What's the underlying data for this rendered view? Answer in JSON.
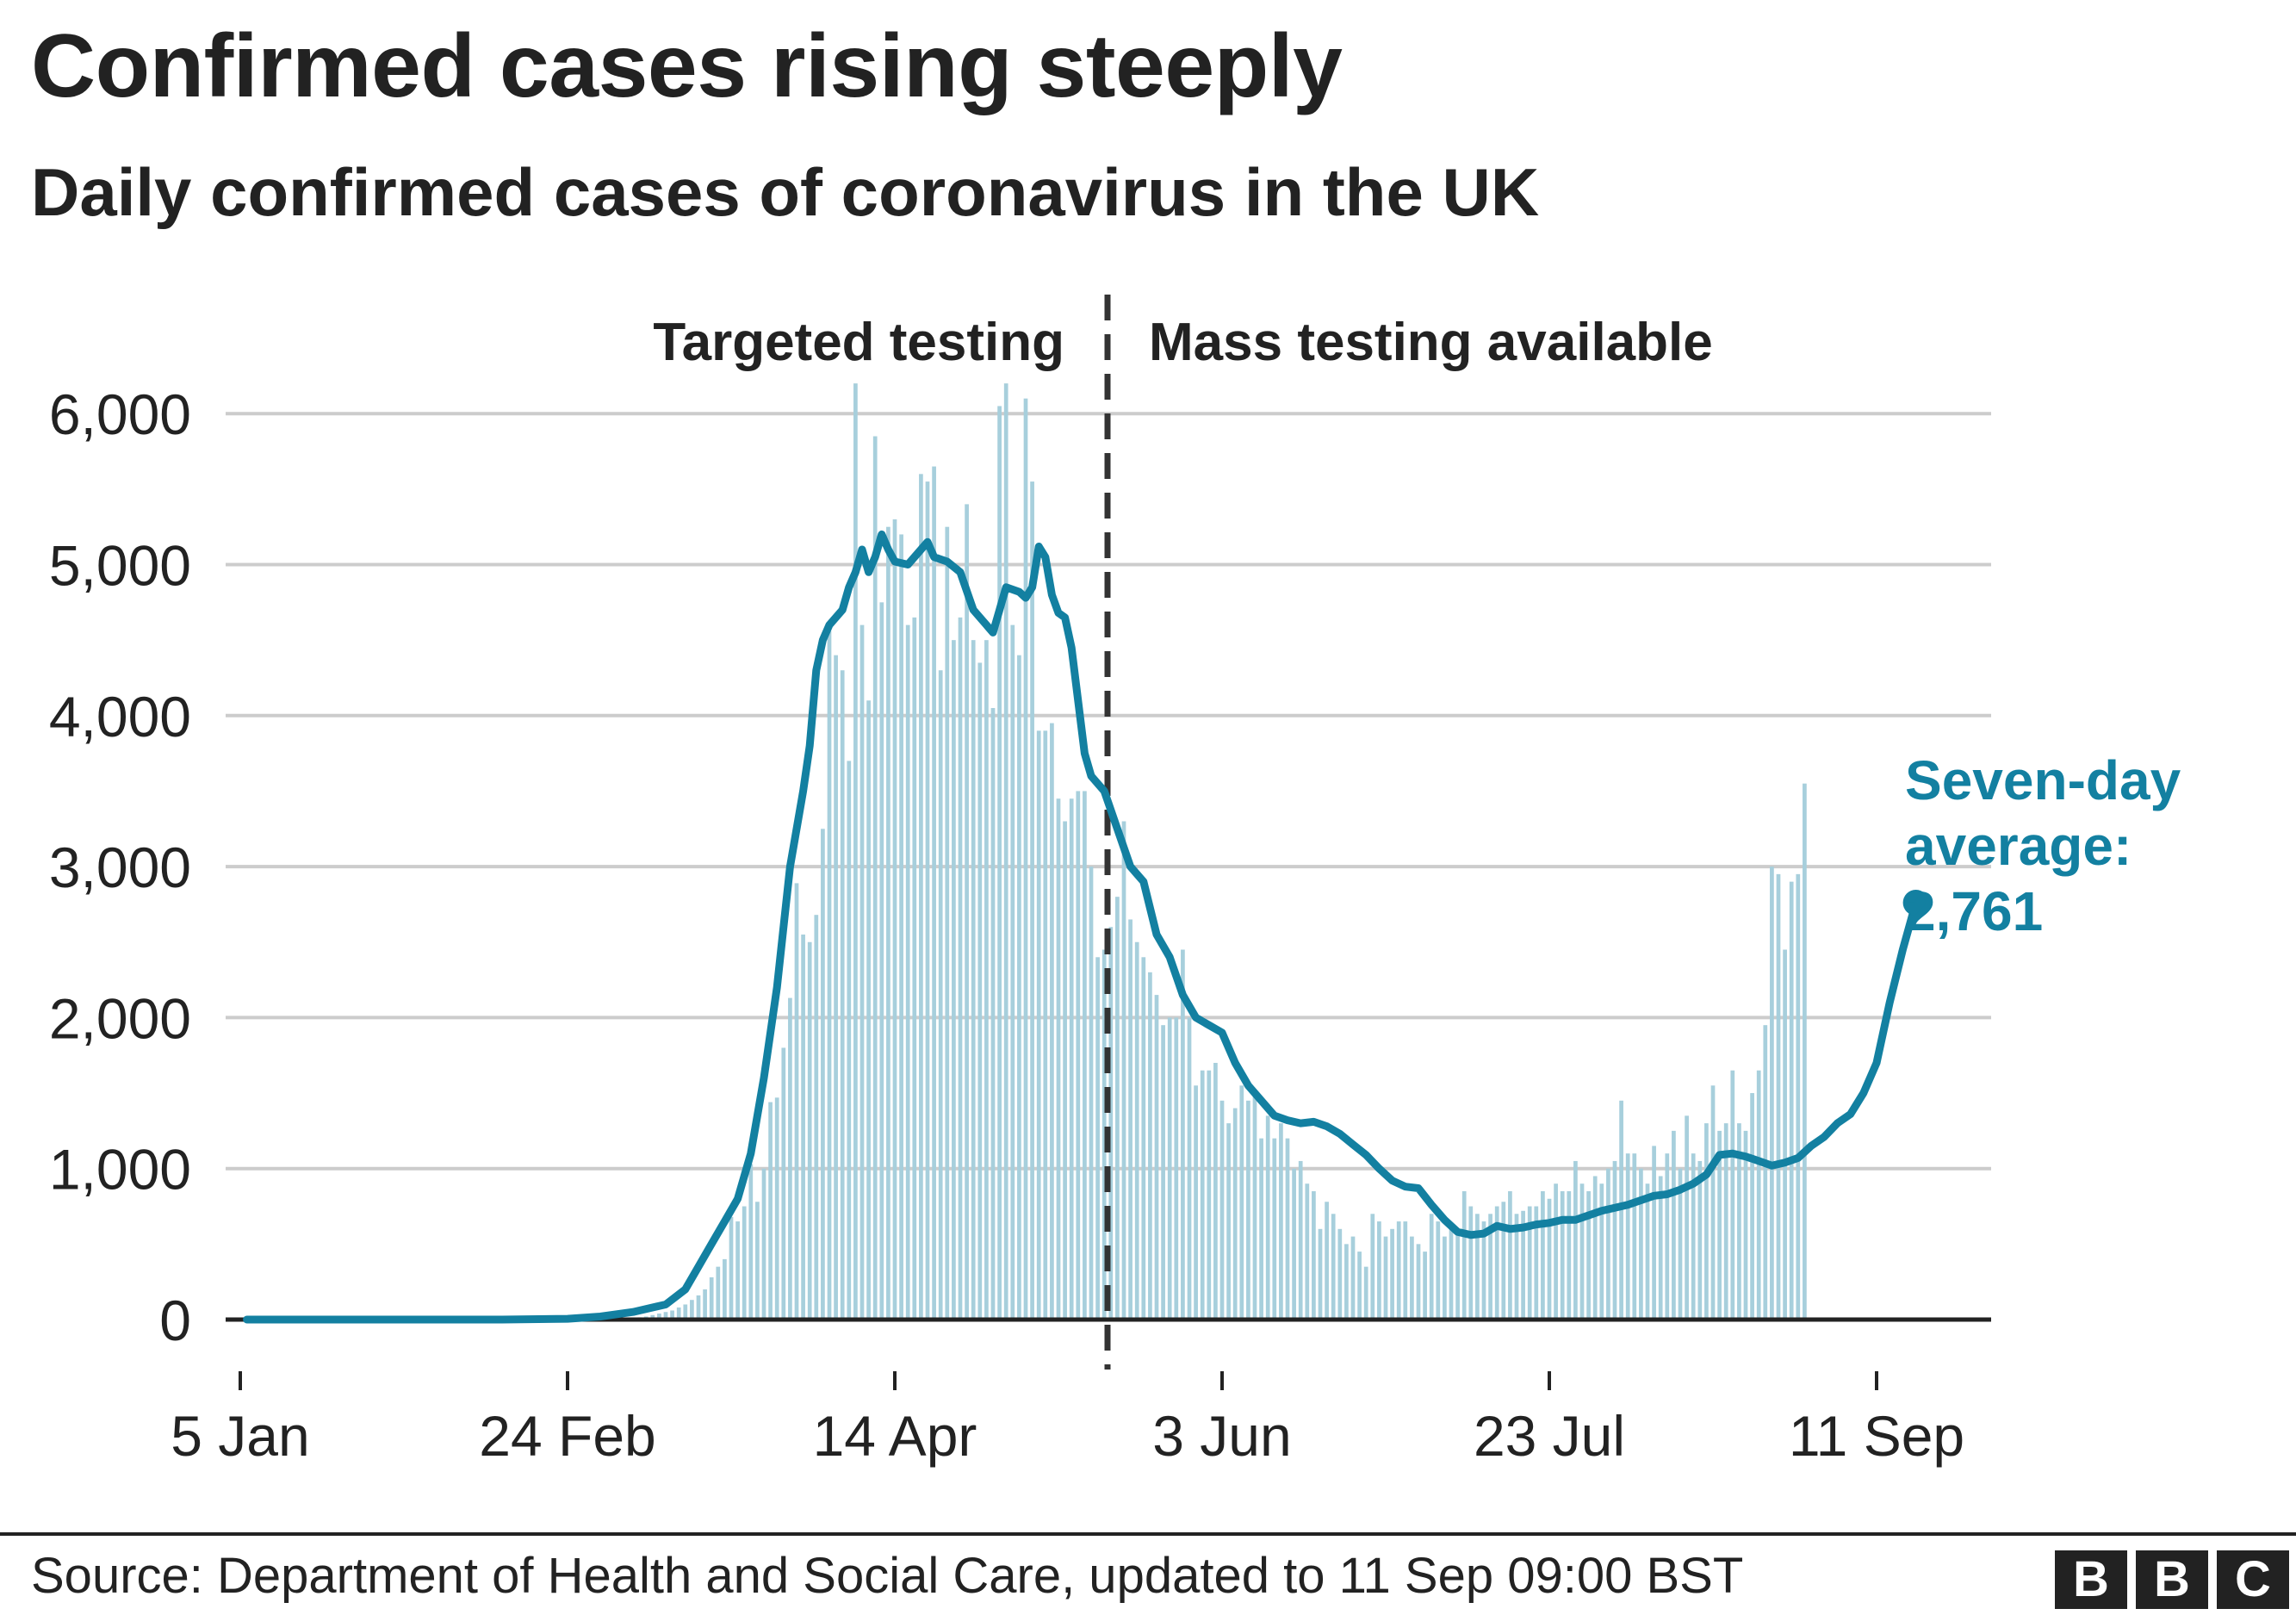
{
  "title": "Confirmed cases rising steeply",
  "subtitle": "Daily confirmed cases of coronavirus in the UK",
  "source": "Source: Department of Health and Social Care, updated to 11 Sep 09:00 BST",
  "logo": [
    "B",
    "B",
    "C"
  ],
  "colors": {
    "bar": "#a7cfdc",
    "line": "#1380a1",
    "text": "#222222",
    "grid": "#cccccc"
  },
  "chart_data": {
    "type": "bar",
    "x_start": "5 Jan",
    "x_end": "11 Sep",
    "ylim": [
      0,
      6000
    ],
    "y_ticks": [
      0,
      1000,
      2000,
      3000,
      4000,
      5000,
      6000
    ],
    "y_tick_labels": [
      "0",
      "1,000",
      "2,000",
      "3,000",
      "4,000",
      "5,000",
      "6,000"
    ],
    "x_ticks": [
      {
        "label": "5 Jan",
        "day": 0
      },
      {
        "label": "24 Feb",
        "day": 50
      },
      {
        "label": "14 Apr",
        "day": 100
      },
      {
        "label": "3 Jun",
        "day": 150
      },
      {
        "label": "23 Jul",
        "day": 200
      },
      {
        "label": "11 Sep",
        "day": 250
      }
    ],
    "divider_day": 132.5,
    "region_labels": {
      "left": "Targeted testing",
      "right": "Mass testing available"
    },
    "bar_series": {
      "name": "Daily confirmed cases",
      "start_day": 60,
      "values": [
        10,
        15,
        20,
        30,
        40,
        50,
        60,
        80,
        100,
        130,
        160,
        200,
        280,
        350,
        400,
        680,
        650,
        750,
        1030,
        780,
        1000,
        1440,
        1470,
        1800,
        2130,
        2890,
        2550,
        2500,
        2680,
        3250,
        4560,
        4400,
        4300,
        3700,
        6200,
        4600,
        4100,
        5850,
        4750,
        5250,
        5300,
        5200,
        4600,
        4650,
        5600,
        5550,
        5650,
        4300,
        5250,
        4500,
        4650,
        5400,
        4500,
        4350,
        4500,
        4050,
        6050,
        6200,
        4600,
        4400,
        6100,
        5550,
        3900,
        3900,
        3950,
        3450,
        3300,
        3450,
        3500,
        3500,
        3000,
        2400,
        2450,
        2600,
        2800,
        3300,
        2650,
        2500,
        2400,
        2300,
        2150,
        1950,
        2000,
        2000,
        2450,
        2000,
        1550,
        1650,
        1650,
        1700,
        1450,
        1300,
        1400,
        1550,
        1450,
        1500,
        1200,
        1350,
        1200,
        1300,
        1200,
        1000,
        1050,
        900,
        850,
        600,
        780,
        700,
        600,
        500,
        550,
        450,
        350,
        700,
        650,
        550,
        600,
        650,
        650,
        550,
        500,
        450,
        700,
        650,
        550,
        600,
        600,
        850,
        750,
        700,
        650,
        700,
        750,
        780,
        850,
        700,
        720,
        750,
        750,
        850,
        800,
        900,
        850,
        850,
        1050,
        900,
        850,
        950,
        900,
        1000,
        1050,
        1450,
        1100,
        1100,
        1000,
        900,
        1150,
        950,
        1100,
        1250,
        1000,
        1350,
        1100,
        1050,
        1300,
        1550,
        1250,
        1300,
        1650,
        1300,
        1250,
        1500,
        1650,
        1950,
        3000,
        2950,
        2450,
        2900,
        2950,
        3550
      ]
    },
    "line_series": {
      "name": "Seven-day average",
      "points": [
        [
          1,
          0
        ],
        [
          20,
          0
        ],
        [
          40,
          0
        ],
        [
          50,
          5
        ],
        [
          55,
          20
        ],
        [
          60,
          50
        ],
        [
          65,
          100
        ],
        [
          68,
          200
        ],
        [
          70,
          350
        ],
        [
          72,
          500
        ],
        [
          74,
          650
        ],
        [
          76,
          800
        ],
        [
          78,
          1100
        ],
        [
          80,
          1600
        ],
        [
          82,
          2200
        ],
        [
          84,
          3000
        ],
        [
          86,
          3500
        ],
        [
          87,
          3800
        ],
        [
          88,
          4300
        ],
        [
          89,
          4500
        ],
        [
          90,
          4600
        ],
        [
          92,
          4700
        ],
        [
          93,
          4850
        ],
        [
          94,
          4950
        ],
        [
          95,
          5100
        ],
        [
          96,
          4950
        ],
        [
          97,
          5050
        ],
        [
          98,
          5200
        ],
        [
          99,
          5100
        ],
        [
          100,
          5020
        ],
        [
          102,
          5000
        ],
        [
          104,
          5100
        ],
        [
          105,
          5150
        ],
        [
          106,
          5050
        ],
        [
          108,
          5020
        ],
        [
          110,
          4950
        ],
        [
          112,
          4700
        ],
        [
          114,
          4600
        ],
        [
          115,
          4550
        ],
        [
          116,
          4700
        ],
        [
          117,
          4850
        ],
        [
          119,
          4820
        ],
        [
          120,
          4780
        ],
        [
          121,
          4850
        ],
        [
          122,
          5120
        ],
        [
          123,
          5050
        ],
        [
          124,
          4800
        ],
        [
          125,
          4680
        ],
        [
          126,
          4650
        ],
        [
          127,
          4450
        ],
        [
          128,
          4100
        ],
        [
          129,
          3750
        ],
        [
          130,
          3600
        ],
        [
          132,
          3500
        ],
        [
          134,
          3250
        ],
        [
          136,
          3000
        ],
        [
          138,
          2900
        ],
        [
          140,
          2550
        ],
        [
          142,
          2400
        ],
        [
          144,
          2150
        ],
        [
          146,
          2000
        ],
        [
          148,
          1950
        ],
        [
          150,
          1900
        ],
        [
          152,
          1700
        ],
        [
          154,
          1550
        ],
        [
          156,
          1450
        ],
        [
          158,
          1350
        ],
        [
          160,
          1320
        ],
        [
          162,
          1300
        ],
        [
          164,
          1310
        ],
        [
          166,
          1280
        ],
        [
          168,
          1230
        ],
        [
          170,
          1160
        ],
        [
          172,
          1090
        ],
        [
          174,
          1000
        ],
        [
          176,
          920
        ],
        [
          178,
          880
        ],
        [
          180,
          870
        ],
        [
          182,
          760
        ],
        [
          184,
          660
        ],
        [
          186,
          580
        ],
        [
          188,
          560
        ],
        [
          190,
          570
        ],
        [
          192,
          620
        ],
        [
          194,
          600
        ],
        [
          196,
          610
        ],
        [
          198,
          630
        ],
        [
          200,
          640
        ],
        [
          202,
          660
        ],
        [
          204,
          660
        ],
        [
          206,
          690
        ],
        [
          208,
          720
        ],
        [
          210,
          740
        ],
        [
          212,
          760
        ],
        [
          214,
          790
        ],
        [
          216,
          820
        ],
        [
          218,
          830
        ],
        [
          220,
          860
        ],
        [
          222,
          900
        ],
        [
          224,
          960
        ],
        [
          226,
          1090
        ],
        [
          228,
          1100
        ],
        [
          230,
          1080
        ],
        [
          232,
          1050
        ],
        [
          234,
          1020
        ],
        [
          236,
          1040
        ],
        [
          238,
          1070
        ],
        [
          240,
          1150
        ],
        [
          242,
          1210
        ],
        [
          244,
          1300
        ],
        [
          246,
          1360
        ],
        [
          248,
          1500
        ],
        [
          250,
          1700
        ],
        [
          252,
          2100
        ],
        [
          254,
          2450
        ],
        [
          256,
          2761
        ]
      ]
    },
    "endpoint_label": [
      "Seven-day",
      "average:",
      "2,761"
    ]
  }
}
